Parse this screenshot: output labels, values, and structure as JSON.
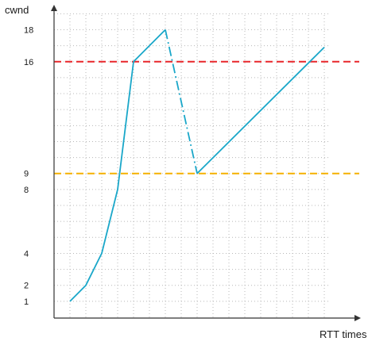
{
  "chart_data": {
    "type": "line",
    "xlabel": "RTT times",
    "ylabel": "cwnd",
    "y_ticks": [
      "1",
      "2",
      "4",
      "8",
      "9",
      "16",
      "18"
    ],
    "xlim": [
      0,
      17
    ],
    "ylim": [
      0,
      19
    ],
    "grid": true,
    "series": [
      {
        "style": "solid",
        "color": "#1aa7c9",
        "points": [
          [
            1,
            1
          ],
          [
            2,
            2
          ],
          [
            3,
            4
          ],
          [
            4,
            8
          ],
          [
            5,
            16
          ],
          [
            7,
            18
          ]
        ]
      },
      {
        "style": "dash-dot",
        "color": "#1aa7c9",
        "points": [
          [
            7,
            18
          ],
          [
            9,
            9
          ]
        ]
      },
      {
        "style": "solid",
        "color": "#1aa7c9",
        "points": [
          [
            9,
            9
          ],
          [
            17,
            16.9
          ]
        ]
      }
    ],
    "reference_lines": [
      {
        "y": 16,
        "color": "#e8262a",
        "style": "dashed"
      },
      {
        "y": 9,
        "color": "#f5b100",
        "style": "dashed"
      }
    ]
  }
}
